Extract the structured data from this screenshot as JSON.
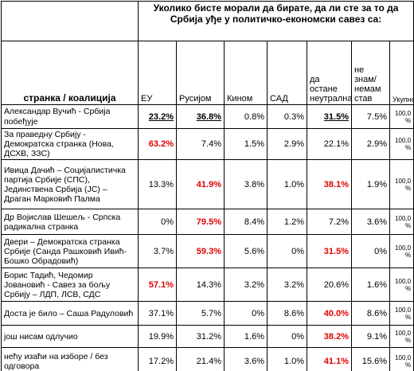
{
  "header": {
    "title": "Уколико бисте морали да бирате, да ли сте за то да Србија уђе у политичко-економски савез са:"
  },
  "table": {
    "columns": [
      "странка / коалиција",
      "ЕУ",
      "Русијом",
      "Кином",
      "САД",
      "да остане неутрална",
      "не знам/ немам став",
      "Укупно"
    ],
    "rows": [
      {
        "party": "Александар Вучић - Србија побеђује",
        "cells": [
          "23.2%",
          "36.8%",
          "0.8%",
          "0.3%",
          "31.5%",
          "7.5%",
          "100,0 %"
        ],
        "underline": [
          0,
          1,
          4
        ]
      },
      {
        "party": "За праведну Србију - Демократска странка (Нова, ДСХВ, ЗЗС)",
        "cells": [
          "63.2%",
          "7.4%",
          "1.5%",
          "2.9%",
          "22.1%",
          "2.9%",
          "100,0 %"
        ],
        "red": [
          0
        ]
      },
      {
        "party": "Ивица Дачић – Социјалистичка партија Србије (СПС), Јединствена Србија (ЈС) – Драган Марковић Палма",
        "cells": [
          "13.3%",
          "41.9%",
          "3.8%",
          "1.0%",
          "38.1%",
          "1.9%",
          "100,0 %"
        ],
        "red": [
          1,
          4
        ]
      },
      {
        "party": "Др Војислав Шешељ - Српска радикална странка",
        "cells": [
          "0%",
          "79.5%",
          "8.4%",
          "1.2%",
          "7.2%",
          "3.6%",
          "100,0 %"
        ],
        "red": [
          1
        ]
      },
      {
        "party": "Двери – Демократска странка Србије (Санда Рашковић Ивић-Бошко Обрадовић)",
        "cells": [
          "3.7%",
          "59.3%",
          "5.6%",
          "0%",
          "31.5%",
          "0%",
          "100,0 %"
        ],
        "red": [
          1,
          4
        ]
      },
      {
        "party": "Борис Тадић, Чедомир Јовановић - Савез за бољу Србију – ЛДП, ЛСВ, СДС",
        "cells": [
          "57.1%",
          "14.3%",
          "3.2%",
          "3.2%",
          "20.6%",
          "1.6%",
          "100,0 %"
        ],
        "red": [
          0
        ]
      },
      {
        "party": "Доста је било – Саша Радуловић",
        "cells": [
          "37.1%",
          "5.7%",
          "0%",
          "8.6%",
          "40.0%",
          "8.6%",
          "100,0 %"
        ],
        "red": [
          4
        ]
      },
      {
        "party": "још нисам одлучио",
        "cells": [
          "19.9%",
          "31.2%",
          "1.6%",
          "0%",
          "38.2%",
          "9.1%",
          "100,0 %"
        ],
        "red": [
          4
        ]
      },
      {
        "party": "нећу изаћи на изборе / без одговора",
        "cells": [
          "17.2%",
          "21.4%",
          "3.6%",
          "1.0%",
          "41.1%",
          "15.6%",
          "100,0 %"
        ],
        "red": [
          4
        ]
      }
    ]
  }
}
